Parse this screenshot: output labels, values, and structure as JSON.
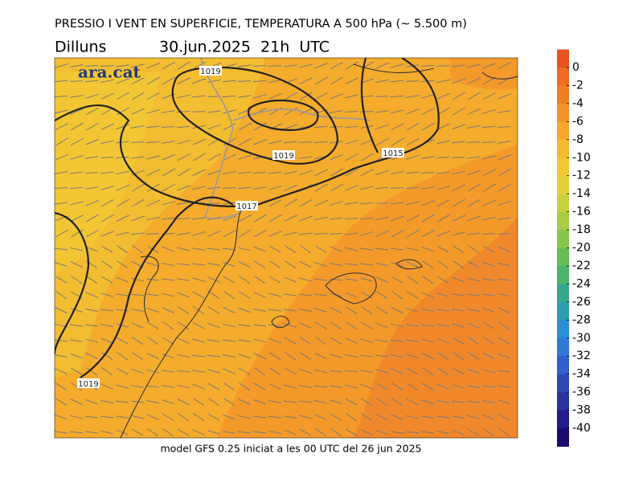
{
  "header": {
    "title": "PRESSIO I VENT EN SUPERFICIE, TEMPERATURA A 500 hPa (~ 5.500 m)",
    "day": "Dilluns",
    "date": "30.jun.2025  21h  UTC"
  },
  "logo": "ara.cat",
  "isobars": [
    {
      "label": "1019"
    },
    {
      "label": "1019"
    },
    {
      "label": "1017"
    },
    {
      "label": "1015"
    },
    {
      "label": "1019"
    }
  ],
  "colorbar": {
    "ticks": [
      0,
      -2,
      -4,
      -6,
      -8,
      -10,
      -12,
      -14,
      -16,
      -18,
      -20,
      -22,
      -24,
      -26,
      -28,
      -30,
      -32,
      -34,
      -36,
      -38,
      -40
    ],
    "colors": [
      "#e8531f",
      "#ee6b21",
      "#f07f24",
      "#f39428",
      "#f5a82c",
      "#f4bb30",
      "#f1c933",
      "#e6d03a",
      "#c9d23e",
      "#a7cd45",
      "#86c64c",
      "#66be56",
      "#4bb46a",
      "#35a98a",
      "#2a9db0",
      "#2a8fd6",
      "#2f78d6",
      "#3060c8",
      "#2e48b4",
      "#2a329e",
      "#221d8a",
      "#1a0c6e"
    ]
  },
  "footer": "model GFS 0.25 iniciat a les 00 UTC del 26 jun 2025"
}
